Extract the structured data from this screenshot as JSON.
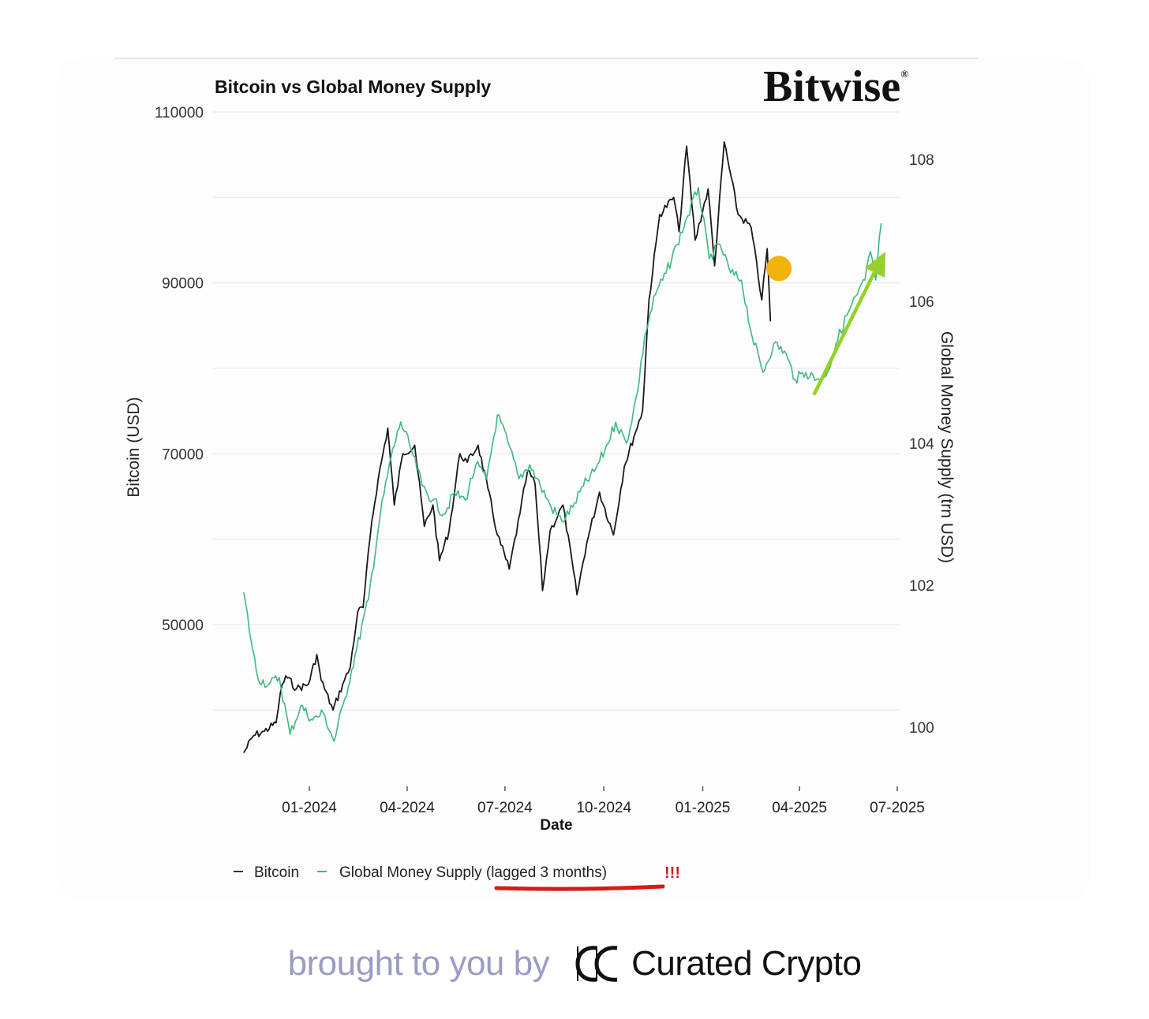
{
  "chart_data": {
    "type": "line",
    "title": "Bitcoin vs Global Money Supply",
    "brand": "Bitwise",
    "brand_mark": "®",
    "xlabel": "Date",
    "ylabel_left": "Bitcoin (USD)",
    "ylabel_right": "Global Money Supply (trn USD)",
    "x_ticks": [
      "01-2024",
      "04-2024",
      "07-2024",
      "10-2024",
      "01-2025",
      "04-2025",
      "07-2025"
    ],
    "y_left_ticks": [
      "110000",
      "90000",
      "70000",
      "50000"
    ],
    "y_left_range": [
      33000,
      110000
    ],
    "y_right_ticks": [
      "108",
      "106",
      "104",
      "102",
      "100"
    ],
    "y_right_range": [
      99.5,
      108.2
    ],
    "grid": true,
    "legend_position": "bottom-left",
    "series": [
      {
        "name": "Bitcoin",
        "axis": "left",
        "color": "#1a1a1a",
        "points": [
          [
            "2023-11-01",
            35000
          ],
          [
            "2023-11-10",
            37000
          ],
          [
            "2023-11-20",
            37500
          ],
          [
            "2023-12-01",
            38500
          ],
          [
            "2023-12-05",
            42000
          ],
          [
            "2023-12-10",
            44000
          ],
          [
            "2023-12-20",
            42500
          ],
          [
            "2023-12-31",
            43000
          ],
          [
            "2024-01-08",
            46500
          ],
          [
            "2024-01-12",
            43500
          ],
          [
            "2024-01-23",
            40000
          ],
          [
            "2024-02-01",
            43000
          ],
          [
            "2024-02-08",
            45000
          ],
          [
            "2024-02-15",
            51500
          ],
          [
            "2024-02-20",
            52000
          ],
          [
            "2024-02-28",
            62000
          ],
          [
            "2024-03-05",
            67000
          ],
          [
            "2024-03-14",
            73000
          ],
          [
            "2024-03-20",
            64000
          ],
          [
            "2024-03-28",
            70000
          ],
          [
            "2024-04-08",
            71000
          ],
          [
            "2024-04-17",
            61500
          ],
          [
            "2024-04-25",
            64000
          ],
          [
            "2024-05-01",
            57500
          ],
          [
            "2024-05-10",
            61000
          ],
          [
            "2024-05-20",
            70000
          ],
          [
            "2024-05-27",
            69000
          ],
          [
            "2024-06-06",
            71000
          ],
          [
            "2024-06-15",
            66000
          ],
          [
            "2024-06-24",
            60500
          ],
          [
            "2024-07-05",
            56500
          ],
          [
            "2024-07-15",
            63000
          ],
          [
            "2024-07-22",
            68000
          ],
          [
            "2024-07-29",
            66500
          ],
          [
            "2024-08-05",
            54000
          ],
          [
            "2024-08-12",
            61000
          ],
          [
            "2024-08-24",
            64000
          ],
          [
            "2024-09-06",
            53500
          ],
          [
            "2024-09-15",
            59500
          ],
          [
            "2024-09-27",
            65500
          ],
          [
            "2024-10-10",
            60500
          ],
          [
            "2024-10-20",
            68500
          ],
          [
            "2024-10-29",
            72000
          ],
          [
            "2024-11-06",
            75000
          ],
          [
            "2024-11-12",
            88000
          ],
          [
            "2024-11-22",
            98000
          ],
          [
            "2024-12-05",
            100000
          ],
          [
            "2024-12-10",
            96000
          ],
          [
            "2024-12-17",
            106000
          ],
          [
            "2024-12-25",
            95000
          ],
          [
            "2025-01-06",
            101000
          ],
          [
            "2025-01-12",
            92000
          ],
          [
            "2025-01-21",
            106500
          ],
          [
            "2025-02-03",
            98000
          ],
          [
            "2025-02-15",
            96500
          ],
          [
            "2025-02-25",
            88000
          ],
          [
            "2025-03-02",
            94000
          ],
          [
            "2025-03-05",
            85500
          ]
        ]
      },
      {
        "name": "Global Money Supply (lagged 3 months)",
        "axis": "right",
        "color": "#3db97c",
        "points": [
          [
            "2023-11-01",
            101.9
          ],
          [
            "2023-11-08",
            101.2
          ],
          [
            "2023-11-14",
            100.7
          ],
          [
            "2023-11-24",
            100.6
          ],
          [
            "2023-12-04",
            100.7
          ],
          [
            "2023-12-14",
            99.9
          ],
          [
            "2023-12-24",
            100.3
          ],
          [
            "2024-01-04",
            100.1
          ],
          [
            "2024-01-14",
            100.2
          ],
          [
            "2024-01-24",
            99.8
          ],
          [
            "2024-02-03",
            100.4
          ],
          [
            "2024-02-14",
            101.1
          ],
          [
            "2024-02-25",
            101.8
          ],
          [
            "2024-03-07",
            103.0
          ],
          [
            "2024-03-17",
            103.8
          ],
          [
            "2024-03-26",
            104.3
          ],
          [
            "2024-04-05",
            103.9
          ],
          [
            "2024-04-15",
            103.4
          ],
          [
            "2024-04-25",
            103.2
          ],
          [
            "2024-05-05",
            103.0
          ],
          [
            "2024-05-15",
            103.3
          ],
          [
            "2024-05-25",
            103.2
          ],
          [
            "2024-06-04",
            103.7
          ],
          [
            "2024-06-14",
            103.5
          ],
          [
            "2024-06-24",
            104.4
          ],
          [
            "2024-07-04",
            104.0
          ],
          [
            "2024-07-14",
            103.5
          ],
          [
            "2024-07-24",
            103.7
          ],
          [
            "2024-08-03",
            103.4
          ],
          [
            "2024-08-13",
            103.1
          ],
          [
            "2024-08-23",
            102.9
          ],
          [
            "2024-09-02",
            103.1
          ],
          [
            "2024-09-12",
            103.4
          ],
          [
            "2024-09-22",
            103.6
          ],
          [
            "2024-10-02",
            103.9
          ],
          [
            "2024-10-12",
            104.3
          ],
          [
            "2024-10-22",
            104.0
          ],
          [
            "2024-11-01",
            104.7
          ],
          [
            "2024-11-08",
            105.5
          ],
          [
            "2024-11-18",
            106.1
          ],
          [
            "2024-11-28",
            106.4
          ],
          [
            "2024-12-08",
            106.8
          ],
          [
            "2024-12-18",
            107.2
          ],
          [
            "2024-12-28",
            107.6
          ],
          [
            "2025-01-07",
            106.6
          ],
          [
            "2025-01-17",
            106.8
          ],
          [
            "2025-01-27",
            106.4
          ],
          [
            "2025-02-06",
            106.3
          ],
          [
            "2025-02-16",
            105.5
          ],
          [
            "2025-02-26",
            105.0
          ],
          [
            "2025-03-08",
            105.4
          ],
          [
            "2025-03-18",
            105.3
          ],
          [
            "2025-03-28",
            104.9
          ],
          [
            "2025-04-07",
            105.0
          ],
          [
            "2025-04-17",
            104.9
          ],
          [
            "2025-04-27",
            105.0
          ],
          [
            "2025-05-05",
            105.4
          ],
          [
            "2025-05-15",
            105.8
          ],
          [
            "2025-05-25",
            106.1
          ],
          [
            "2025-06-01",
            106.3
          ],
          [
            "2025-06-06",
            106.7
          ],
          [
            "2025-06-11",
            106.3
          ],
          [
            "2025-06-16",
            107.1
          ]
        ]
      }
    ],
    "annotations": [
      {
        "kind": "dot",
        "date": "2025-03-10",
        "value": 91500,
        "axis": "left",
        "color": "#f2b20c"
      },
      {
        "kind": "arrow",
        "from": [
          "2025-04-15",
          104.7
        ],
        "to": [
          "2025-06-20",
          106.7
        ],
        "axis": "right",
        "color": "#95d12a"
      },
      {
        "kind": "emphasis",
        "text": "!!!",
        "color": "#cc1f1f",
        "underline_color": "#d61a1a"
      }
    ]
  },
  "footer": {
    "prefix": "brought to you by",
    "brand_name": "Curated Crypto",
    "logo_icon": "interlocking-c-icon"
  }
}
